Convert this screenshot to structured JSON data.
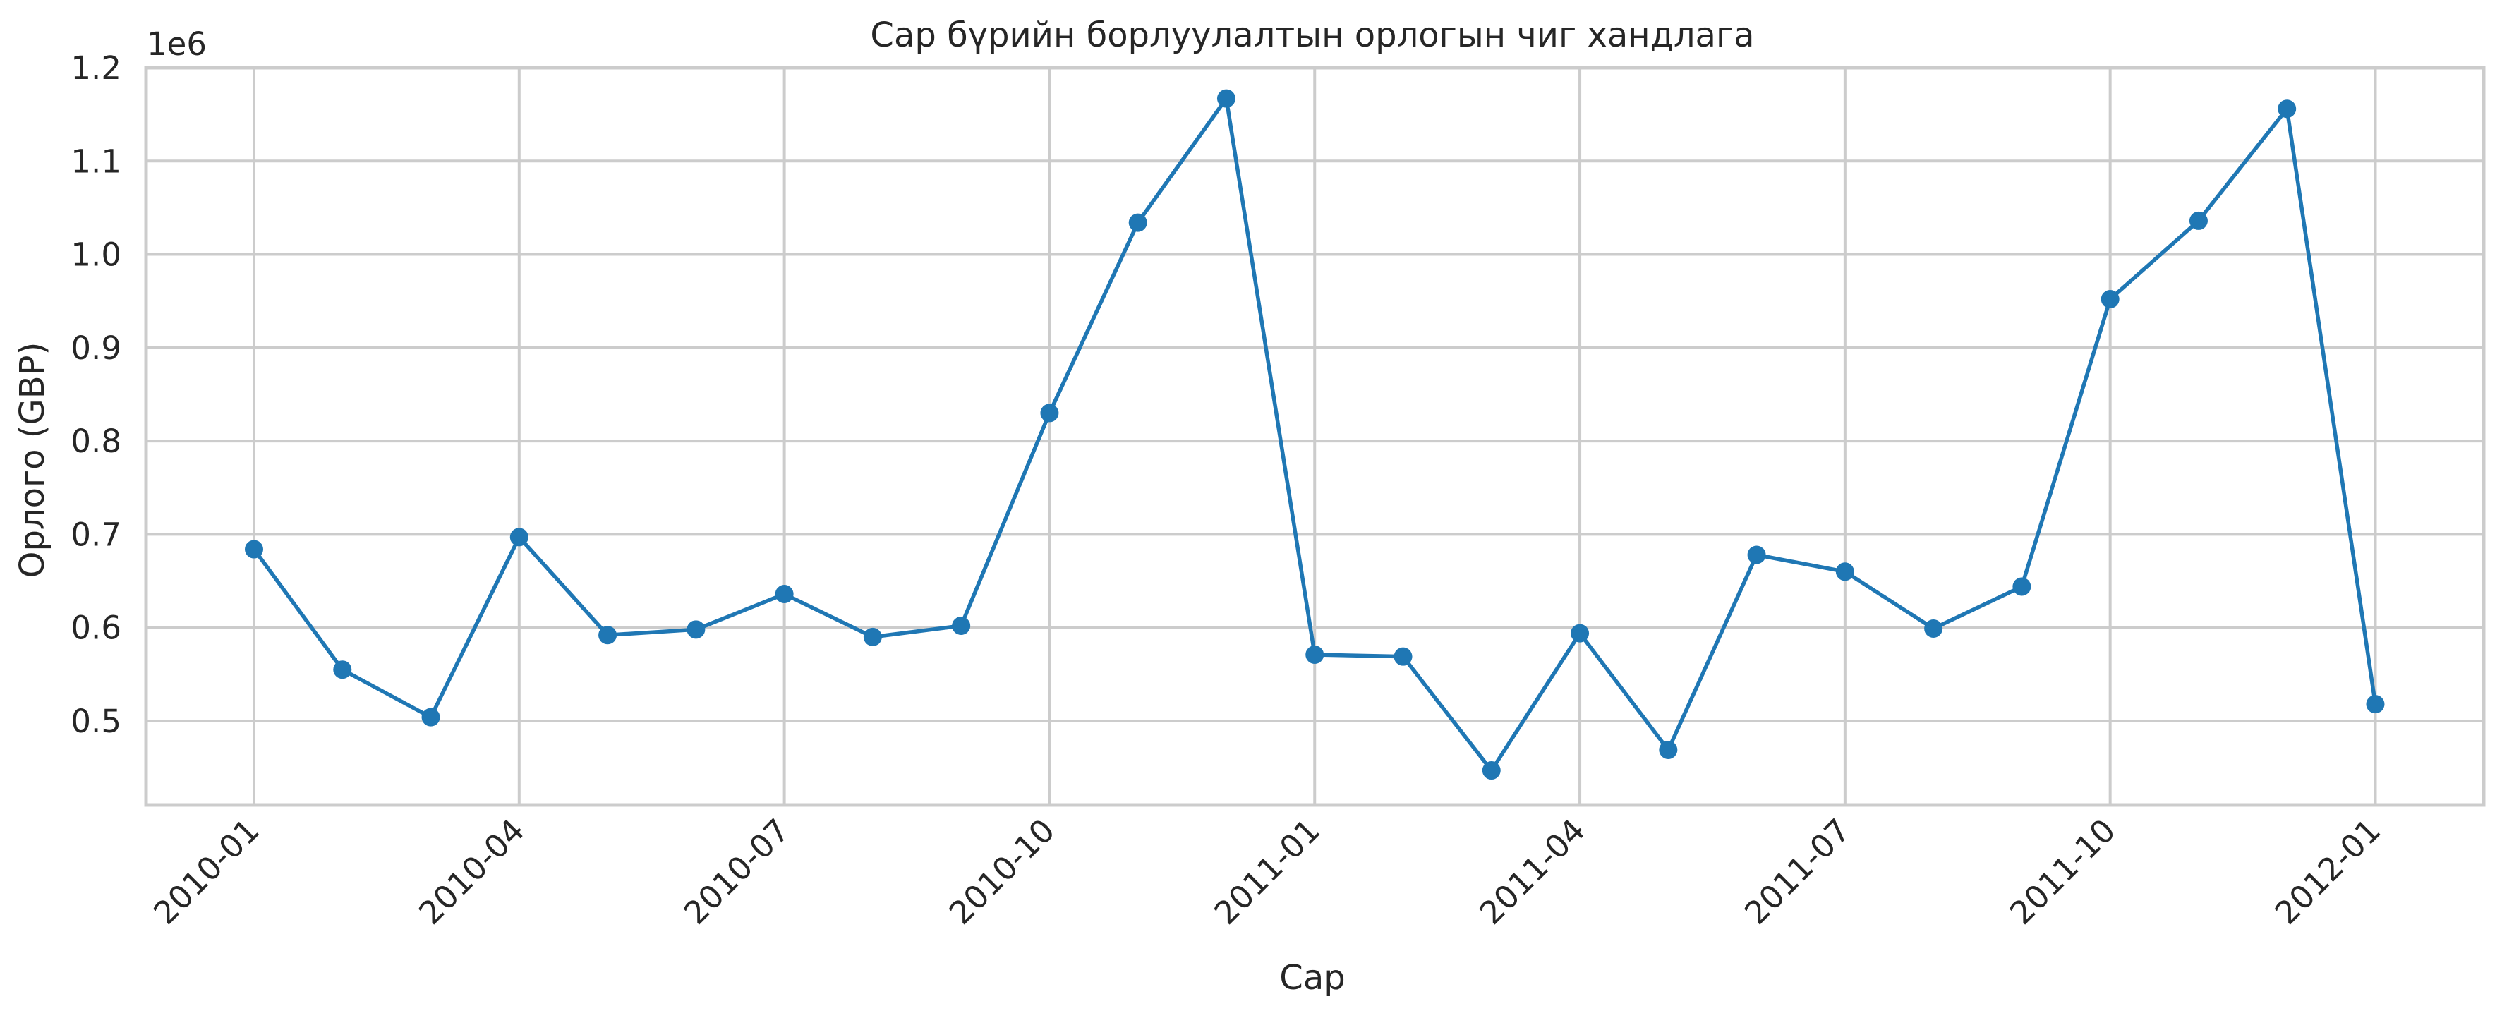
{
  "chart_data": {
    "type": "line",
    "title": "Сар бүрийн борлуулалтын орлогын чиг хандлага",
    "xlabel": "Сар",
    "ylabel": "Орлого (GBP)",
    "y_offset_label": "1e6",
    "x_tick_labels": [
      "2010-01",
      "2010-04",
      "2010-07",
      "2010-10",
      "2011-01",
      "2011-04",
      "2011-07",
      "2011-10",
      "2012-01"
    ],
    "y_tick_labels": [
      "0.5",
      "0.6",
      "0.7",
      "0.8",
      "0.9",
      "1.0",
      "1.1",
      "1.2"
    ],
    "y_ticks": [
      0.5,
      0.6,
      0.7,
      0.8,
      0.9,
      1.0,
      1.1,
      1.2
    ],
    "ylim": [
      0.41,
      1.2
    ],
    "grid": true,
    "series": [
      {
        "color": "#1f77b4",
        "marker": "circle",
        "x": [
          "2010-01",
          "2010-02",
          "2010-03",
          "2010-04",
          "2010-05",
          "2010-06",
          "2010-07",
          "2010-08",
          "2010-09",
          "2010-10",
          "2010-11",
          "2010-12",
          "2011-01",
          "2011-02",
          "2011-03",
          "2011-04",
          "2011-05",
          "2011-06",
          "2011-07",
          "2011-08",
          "2011-09",
          "2011-10",
          "2011-11",
          "2011-12",
          "2012-01"
        ],
        "values": [
          0.684,
          0.555,
          0.504,
          0.697,
          0.592,
          0.598,
          0.636,
          0.59,
          0.602,
          0.83,
          1.034,
          1.167,
          0.571,
          0.569,
          0.447,
          0.594,
          0.469,
          0.678,
          0.66,
          0.599,
          0.644,
          0.952,
          1.036,
          1.156,
          0.518
        ]
      }
    ]
  }
}
